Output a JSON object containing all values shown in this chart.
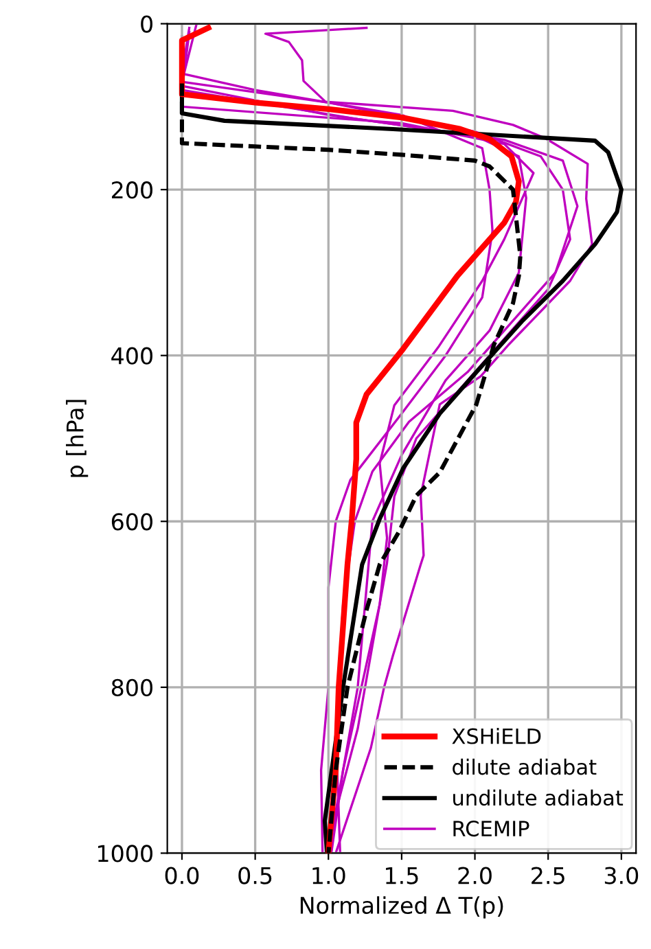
{
  "chart_data": {
    "type": "line",
    "xlabel": "Normalized Δ T(p)",
    "ylabel": "p [hPa]",
    "xlim": [
      -0.1,
      3.1
    ],
    "ylim": [
      1000,
      0
    ],
    "xticks": [
      {
        "value": 0,
        "label": "0.0"
      },
      0.5,
      {
        "value": 1,
        "label": "1.0"
      },
      1.5,
      {
        "value": 2,
        "label": "2.0"
      },
      2.5,
      {
        "value": 3,
        "label": "3.0"
      }
    ],
    "yticks": [
      0,
      200,
      400,
      600,
      800,
      1000
    ],
    "grid": true,
    "legend": "bottom right",
    "series": [
      {
        "name": "XSHiELD",
        "color": "#ff0000",
        "line_style": "solid",
        "x": [
          0.18,
          0.0,
          0.0,
          0.5,
          1.0,
          1.5,
          1.9,
          2.1,
          2.25,
          2.3,
          2.28,
          2.2,
          1.88,
          1.51,
          1.26,
          1.19,
          1.19,
          1.16,
          1.13,
          1.07,
          1.05,
          1.0
        ],
        "values": [
          5,
          20,
          85,
          95,
          103,
          113,
          127,
          139,
          160,
          190,
          215,
          240,
          304,
          392,
          447,
          481,
          525,
          597,
          652,
          800,
          900,
          1000
        ]
      },
      {
        "name": "dilute adiabat",
        "color": "#000000",
        "line_style": "dashed",
        "x": [
          0.0,
          0.0,
          0.5,
          1.0,
          1.5,
          2.0,
          2.1,
          2.26,
          2.31,
          2.3,
          2.26,
          2.13,
          2.01,
          1.76,
          1.6,
          1.48,
          1.35,
          1.26,
          1.13,
          1.05,
          1.0
        ],
        "values": [
          72,
          144,
          148,
          152,
          158,
          165,
          172,
          200,
          280,
          304,
          337,
          387,
          459,
          541,
          569,
          613,
          652,
          707,
          800,
          900,
          1000
        ]
      },
      {
        "name": "undilute adiabat",
        "color": "#000000",
        "line_style": "solid",
        "x": [
          0.0,
          0.0,
          0.29,
          1.44,
          2.82,
          2.91,
          3.0,
          2.97,
          2.82,
          2.6,
          2.32,
          2.01,
          1.76,
          1.51,
          1.35,
          1.23,
          1.1,
          0.975,
          0.99
        ],
        "values": [
          72,
          108,
          117,
          127,
          141,
          155,
          200,
          227,
          266,
          310,
          359,
          420,
          470,
          536,
          597,
          652,
          800,
          961,
          1000
        ]
      },
      {
        "name": "RCEMIP",
        "color": "#bf00bf",
        "line_style": "solid",
        "x": [
          1.26,
          0.57,
          0.73,
          0.82,
          0.83,
          0.98,
          1.85,
          2.26,
          2.48,
          2.77,
          2.76,
          2.8,
          2.65,
          2.23,
          2.04,
          1.76,
          1.63,
          1.65,
          1.63,
          1.44,
          1.38,
          1.29,
          1.05
        ],
        "values": [
          5,
          12,
          22,
          44,
          69,
          94,
          105,
          122,
          138,
          169,
          211,
          266,
          310,
          387,
          425,
          459,
          569,
          641,
          652,
          762,
          800,
          873,
          1000
        ]
      },
      {
        "color": "#bf00bf",
        "line_style": "solid",
        "x": [
          0.05,
          0.0,
          0.5,
          1.5,
          2.05,
          2.1,
          2.12,
          2.05,
          1.8,
          1.5,
          1.15,
          1.05,
          1.0,
          1.0,
          0.95,
          0.96
        ],
        "values": [
          5,
          60,
          80,
          110,
          150,
          200,
          250,
          330,
          400,
          470,
          550,
          600,
          680,
          800,
          900,
          1000
        ]
      },
      {
        "color": "#bf00bf",
        "line_style": "solid",
        "x": [
          0.1,
          0.0,
          1.0,
          2.0,
          2.45,
          2.6,
          2.65,
          2.5,
          2.25,
          1.9,
          1.6,
          1.45,
          1.4,
          1.3,
          1.2,
          1.05,
          1.0
        ],
        "values": [
          0,
          70,
          95,
          130,
          160,
          200,
          260,
          320,
          370,
          440,
          500,
          570,
          650,
          750,
          850,
          950,
          1000
        ]
      },
      {
        "color": "#bf00bf",
        "line_style": "solid",
        "x": [
          0.0,
          0.0,
          1.0,
          2.0,
          2.3,
          2.35,
          2.3,
          2.1,
          1.8,
          1.5,
          1.3,
          1.25,
          1.2,
          1.1,
          1.02
        ],
        "values": [
          15,
          75,
          110,
          135,
          160,
          210,
          300,
          370,
          430,
          520,
          600,
          700,
          800,
          900,
          1000
        ]
      },
      {
        "color": "#bf00bf",
        "line_style": "solid",
        "x": [
          0.05,
          0.0,
          1.2,
          2.2,
          2.6,
          2.7,
          2.55,
          2.3,
          1.95,
          1.55,
          1.3,
          1.18,
          1.1,
          1.05,
          1.08
        ],
        "values": [
          10,
          80,
          115,
          140,
          165,
          220,
          300,
          350,
          420,
          480,
          540,
          600,
          700,
          850,
          1000
        ]
      },
      {
        "color": "#bf00bf",
        "line_style": "solid",
        "x": [
          0.0,
          1.5,
          2.2,
          2.4,
          2.2,
          2.05,
          1.75,
          1.45,
          1.35,
          1.4,
          1.35,
          1.25,
          1.1,
          1.0
        ],
        "values": [
          100,
          120,
          145,
          180,
          260,
          310,
          390,
          460,
          530,
          620,
          700,
          780,
          900,
          1000
        ]
      }
    ]
  }
}
